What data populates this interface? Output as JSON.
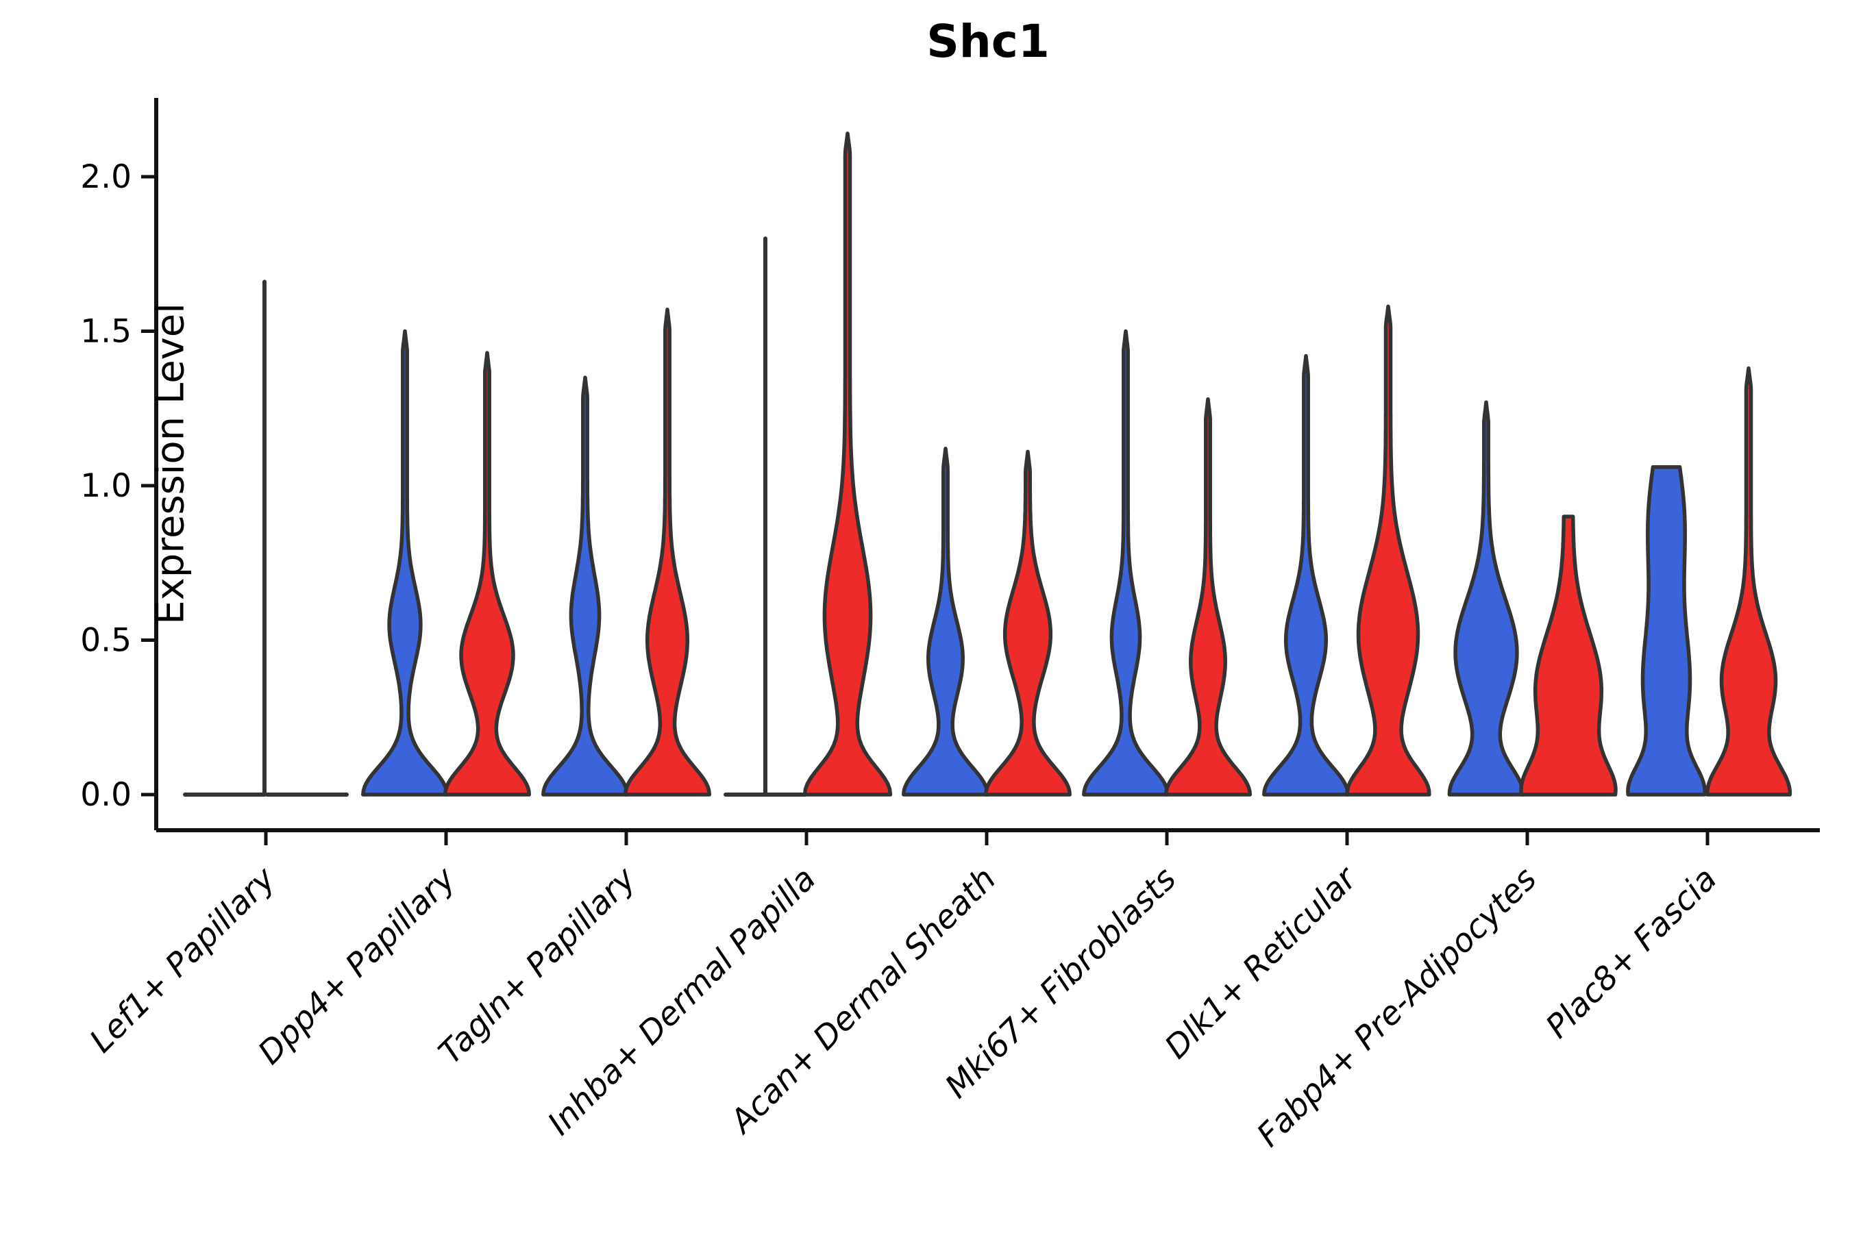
{
  "title": "Shc1",
  "y_axis": {
    "label": "Expression Level",
    "tick_labels": [
      "0.0",
      "0.5",
      "1.0",
      "1.5",
      "2.0"
    ],
    "tick_values": [
      0.0,
      0.5,
      1.0,
      1.5,
      2.0
    ],
    "range": [
      0,
      2.25
    ]
  },
  "colors": {
    "blue": "#3B63DA",
    "red": "#EE2B2B",
    "edge": "#333333",
    "axis": "#111111"
  },
  "chart_data": {
    "type": "violin",
    "title": "Shc1",
    "ylabel": "Expression Level",
    "xlabel": "",
    "ylim": [
      0,
      2.25
    ],
    "grid": false,
    "legend": "none",
    "categories": [
      "Lef1+ Papillary",
      "Dpp4+ Papillary",
      "Tagln+ Papillary",
      "Inhba+ Dermal Papilla",
      "Acan+ Dermal Sheath",
      "Mki67+ Fibroblasts",
      "Dlk1+ Reticular",
      "Fabp4+ Pre-Adipocytes",
      "Plac8+ Fascia"
    ],
    "series_names": [
      "blue",
      "red"
    ],
    "violins": [
      {
        "category": "Lef1+ Papillary",
        "side": "left",
        "color_key": "blue",
        "shape": "flat",
        "max_expression": 1.66,
        "spike": {
          "value": 1.66,
          "offset_frac": 1.0
        }
      },
      {
        "category": "Lef1+ Papillary",
        "side": "right",
        "color_key": "red",
        "shape": "flat",
        "max_expression": 0.0
      },
      {
        "category": "Dpp4+ Papillary",
        "side": "left",
        "color_key": "blue",
        "shape": "kde",
        "max_expression": 1.5,
        "tip": "point",
        "profile": {
          "base": {
            "w": 1.0,
            "sd": 0.09
          },
          "bulges": [
            {
              "w": 0.34,
              "mu": 0.55,
              "sd": 0.12
            }
          ],
          "stem": 0.055
        }
      },
      {
        "category": "Dpp4+ Papillary",
        "side": "right",
        "color_key": "red",
        "shape": "kde",
        "max_expression": 1.43,
        "tip": "point",
        "profile": {
          "base": {
            "w": 1.0,
            "sd": 0.09
          },
          "bulges": [
            {
              "w": 0.6,
              "mu": 0.45,
              "sd": 0.13
            }
          ],
          "stem": 0.055
        }
      },
      {
        "category": "Tagln+ Papillary",
        "side": "left",
        "color_key": "blue",
        "shape": "kde",
        "max_expression": 1.35,
        "tip": "point",
        "profile": {
          "base": {
            "w": 1.0,
            "sd": 0.09
          },
          "bulges": [
            {
              "w": 0.3,
              "mu": 0.58,
              "sd": 0.13
            }
          ],
          "stem": 0.055
        }
      },
      {
        "category": "Tagln+ Papillary",
        "side": "right",
        "color_key": "red",
        "shape": "kde",
        "max_expression": 1.57,
        "tip": "point",
        "profile": {
          "base": {
            "w": 1.0,
            "sd": 0.09
          },
          "bulges": [
            {
              "w": 0.45,
              "mu": 0.5,
              "sd": 0.15
            }
          ],
          "stem": 0.055
        }
      },
      {
        "category": "Inhba+ Dermal Papilla",
        "side": "left",
        "color_key": "blue",
        "shape": "flat",
        "max_expression": 1.8,
        "spike": {
          "value": 1.8,
          "offset_frac": 0.0
        }
      },
      {
        "category": "Inhba+ Dermal Papilla",
        "side": "right",
        "color_key": "red",
        "shape": "kde",
        "max_expression": 2.14,
        "tip": "point",
        "profile": {
          "base": {
            "w": 1.0,
            "sd": 0.09
          },
          "bulges": [
            {
              "w": 0.52,
              "mu": 0.58,
              "sd": 0.22
            }
          ],
          "stem": 0.06
        }
      },
      {
        "category": "Acan+ Dermal Sheath",
        "side": "left",
        "color_key": "blue",
        "shape": "kde",
        "max_expression": 1.12,
        "tip": "point",
        "profile": {
          "base": {
            "w": 1.0,
            "sd": 0.09
          },
          "bulges": [
            {
              "w": 0.38,
              "mu": 0.44,
              "sd": 0.12
            }
          ],
          "stem": 0.055
        }
      },
      {
        "category": "Acan+ Dermal Sheath",
        "side": "right",
        "color_key": "red",
        "shape": "kde",
        "max_expression": 1.11,
        "tip": "point",
        "profile": {
          "base": {
            "w": 1.0,
            "sd": 0.09
          },
          "bulges": [
            {
              "w": 0.52,
              "mu": 0.52,
              "sd": 0.14
            }
          ],
          "stem": 0.055
        }
      },
      {
        "category": "Mki67+ Fibroblasts",
        "side": "left",
        "color_key": "blue",
        "shape": "kde",
        "max_expression": 1.5,
        "tip": "point",
        "profile": {
          "base": {
            "w": 1.0,
            "sd": 0.09
          },
          "bulges": [
            {
              "w": 0.3,
              "mu": 0.51,
              "sd": 0.12
            }
          ],
          "stem": 0.055
        }
      },
      {
        "category": "Mki67+ Fibroblasts",
        "side": "right",
        "color_key": "red",
        "shape": "kde",
        "max_expression": 1.28,
        "tip": "point",
        "profile": {
          "base": {
            "w": 1.0,
            "sd": 0.09
          },
          "bulges": [
            {
              "w": 0.38,
              "mu": 0.43,
              "sd": 0.13
            }
          ],
          "stem": 0.055
        }
      },
      {
        "category": "Dlk1+ Reticular",
        "side": "left",
        "color_key": "blue",
        "shape": "kde",
        "max_expression": 1.42,
        "tip": "point",
        "profile": {
          "base": {
            "w": 1.0,
            "sd": 0.09
          },
          "bulges": [
            {
              "w": 0.45,
              "mu": 0.5,
              "sd": 0.13
            }
          ],
          "stem": 0.055
        }
      },
      {
        "category": "Dlk1+ Reticular",
        "side": "right",
        "color_key": "red",
        "shape": "kde",
        "max_expression": 1.58,
        "tip": "point",
        "profile": {
          "base": {
            "w": 0.95,
            "sd": 0.09
          },
          "bulges": [
            {
              "w": 0.69,
              "mu": 0.52,
              "sd": 0.2
            }
          ],
          "stem": 0.06
        }
      },
      {
        "category": "Fabp4+ Pre-Adipocytes",
        "side": "left",
        "color_key": "blue",
        "shape": "kde",
        "max_expression": 1.27,
        "tip": "point",
        "profile": {
          "base": {
            "w": 0.85,
            "sd": 0.09
          },
          "bulges": [
            {
              "w": 0.72,
              "mu": 0.46,
              "sd": 0.17
            }
          ],
          "stem": 0.055
        }
      },
      {
        "category": "Fabp4+ Pre-Adipocytes",
        "side": "right",
        "color_key": "red",
        "shape": "kde",
        "max_expression": 0.9,
        "tip": "blunt",
        "profile": {
          "base": {
            "w": 0.95,
            "sd": 0.1
          },
          "bulges": [
            {
              "w": 0.72,
              "mu": 0.34,
              "sd": 0.18
            }
          ],
          "stem": 0.11
        }
      },
      {
        "category": "Plac8+ Fascia",
        "side": "left",
        "color_key": "blue",
        "shape": "kde",
        "max_expression": 1.06,
        "tip": "blunt",
        "profile": {
          "base": {
            "w": 0.8,
            "sd": 0.09
          },
          "bulges": [
            {
              "w": 0.52,
              "mu": 0.35,
              "sd": 0.2
            },
            {
              "w": 0.4,
              "mu": 0.88,
              "sd": 0.22
            }
          ],
          "stem": 0.05
        }
      },
      {
        "category": "Plac8+ Fascia",
        "side": "right",
        "color_key": "red",
        "shape": "kde",
        "max_expression": 1.38,
        "tip": "point",
        "profile": {
          "base": {
            "w": 0.95,
            "sd": 0.1
          },
          "bulges": [
            {
              "w": 0.62,
              "mu": 0.37,
              "sd": 0.15
            }
          ],
          "stem": 0.06
        }
      }
    ]
  }
}
